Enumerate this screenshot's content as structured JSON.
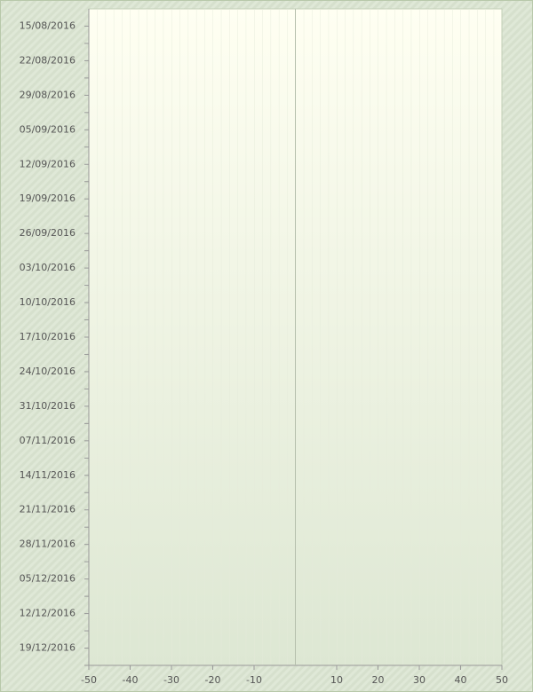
{
  "chart_data": {
    "type": "bar",
    "orientation": "horizontal",
    "categories": [
      "15/08/2016",
      "22/08/2016",
      "29/08/2016",
      "05/09/2016",
      "12/09/2016",
      "19/09/2016",
      "26/09/2016",
      "03/10/2016",
      "10/10/2016",
      "17/10/2016",
      "24/10/2016",
      "31/10/2016",
      "07/11/2016",
      "14/11/2016",
      "21/11/2016",
      "28/11/2016",
      "05/12/2016",
      "12/12/2016",
      "19/12/2016"
    ],
    "xlim": [
      -50,
      50
    ],
    "xticks": [
      -50,
      -40,
      -30,
      -20,
      -10,
      10,
      20,
      30,
      40,
      50
    ]
  }
}
